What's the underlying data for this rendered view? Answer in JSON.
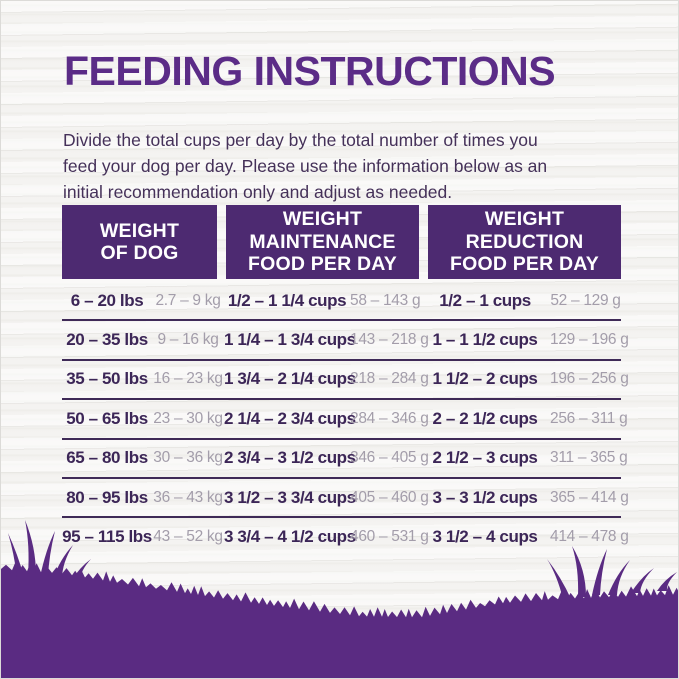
{
  "page": {
    "title": "FEEDING INSTRUCTIONS",
    "intro_lines": [
      "Divide the total cups per day by the total number of times you",
      "feed your dog per day. Please use the information below as an",
      "initial recommendation only and adjust as needed."
    ]
  },
  "colors": {
    "title_purple": "#5b2c87",
    "header_bg": "#4d2a71",
    "row_bold_text": "#3c2657",
    "row_metric_text": "#a39daa",
    "separator": "#3f2a57",
    "grass": "#5a2b82",
    "background": "#f4f3f1"
  },
  "table": {
    "headers": [
      {
        "lines": [
          "WEIGHT",
          "OF DOG",
          ""
        ]
      },
      {
        "lines": [
          "WEIGHT",
          "MAINTENANCE",
          "FOOD PER DAY"
        ]
      },
      {
        "lines": [
          "WEIGHT",
          "REDUCTION",
          "FOOD PER DAY"
        ]
      }
    ],
    "rows": [
      {
        "weight_lbs": "6 – 20 lbs",
        "weight_kg": "2.7 – 9 kg",
        "maintenance_cups": "1/2 – 1 1/4 cups",
        "maintenance_g": "58 – 143 g",
        "reduction_cups": "1/2 – 1 cups",
        "reduction_g": "52 – 129 g"
      },
      {
        "weight_lbs": "20 – 35 lbs",
        "weight_kg": "9 – 16 kg",
        "maintenance_cups": "1 1/4 – 1 3/4 cups",
        "maintenance_g": "143 – 218 g",
        "reduction_cups": "1 – 1 1/2 cups",
        "reduction_g": "129 – 196 g"
      },
      {
        "weight_lbs": "35 – 50 lbs",
        "weight_kg": "16 – 23 kg",
        "maintenance_cups": "1 3/4 – 2 1/4 cups",
        "maintenance_g": "218 – 284 g",
        "reduction_cups": "1 1/2 – 2 cups",
        "reduction_g": "196 – 256 g"
      },
      {
        "weight_lbs": "50 – 65 lbs",
        "weight_kg": "23 – 30 kg",
        "maintenance_cups": "2 1/4 – 2 3/4 cups",
        "maintenance_g": "284 – 346 g",
        "reduction_cups": "2 – 2 1/2 cups",
        "reduction_g": "256 – 311 g"
      },
      {
        "weight_lbs": "65 – 80 lbs",
        "weight_kg": "30 – 36 kg",
        "maintenance_cups": "2 3/4 – 3 1/2 cups",
        "maintenance_g": "346 – 405 g",
        "reduction_cups": "2 1/2 – 3 cups",
        "reduction_g": "311 – 365 g"
      },
      {
        "weight_lbs": "80 – 95 lbs",
        "weight_kg": "36 – 43 kg",
        "maintenance_cups": "3 1/2 – 3 3/4 cups",
        "maintenance_g": "405 – 460 g",
        "reduction_cups": "3 – 3 1/2 cups",
        "reduction_g": "365 – 414 g"
      },
      {
        "weight_lbs": "95 – 115 lbs",
        "weight_kg": "43 – 52 kg",
        "maintenance_cups": "3 3/4 – 4 1/2 cups",
        "maintenance_g": "460 – 531 g",
        "reduction_cups": "3 1/2 – 4 cups",
        "reduction_g": "414 – 478 g"
      }
    ]
  }
}
